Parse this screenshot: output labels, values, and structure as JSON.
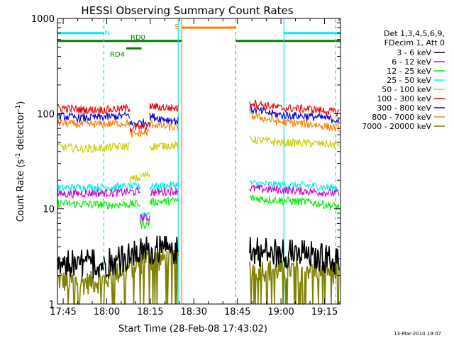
{
  "chart_data": {
    "type": "line",
    "title": "HESSI Observing Summary Count Rates",
    "xlabel": "Start Time (28-Feb-08 17:43:02)",
    "ylabel_prefix": "Count Rate (s",
    "ylabel_sup1": "-1",
    "ylabel_mid": " detector",
    "ylabel_suffix": ")",
    "x_start": "17:43:02",
    "x_end": "19:20:30",
    "xlim_min": [
      1063.03,
      1160.5
    ],
    "y_scale": "log",
    "ylim": [
      1,
      1000
    ],
    "x_ticks": [
      {
        "label": "17:45",
        "min": 1065
      },
      {
        "label": "18:00",
        "min": 1080
      },
      {
        "label": "18:15",
        "min": 1095
      },
      {
        "label": "18:30",
        "min": 1110
      },
      {
        "label": "18:45",
        "min": 1125
      },
      {
        "label": "19:00",
        "min": 1140
      },
      {
        "label": "19:15",
        "min": 1155
      }
    ],
    "y_ticks": [
      {
        "label": "1",
        "v": 1
      },
      {
        "label": "10",
        "v": 10
      },
      {
        "label": "100",
        "v": 100
      },
      {
        "label": "1000",
        "v": 1000
      }
    ],
    "legend_header": [
      "Det 1,3,4,5,6,9,",
      "FDecim 1, Att 0"
    ],
    "legend_placement": "right",
    "series": [
      {
        "name": "3 - 6 keV",
        "color": "#000000",
        "segments": [
          {
            "start": 1063.03,
            "end": 1079.0,
            "values": [
              2.5,
              2.6
            ]
          },
          {
            "start": 1079.0,
            "end": 1092.0,
            "values": [
              2.6,
              2.8,
              3.4
            ]
          },
          {
            "start": 1092.0,
            "end": 1104.6,
            "values": [
              3.5,
              3.6,
              3.5
            ]
          },
          {
            "start": 1129.2,
            "end": 1160.0,
            "values": [
              3.5,
              3.3,
              3.2,
              2.6
            ]
          }
        ]
      },
      {
        "name": "6 - 12 keV",
        "color": "#cc00cc",
        "segments": [
          {
            "start": 1063.03,
            "end": 1091.5,
            "values": [
              14.3,
              14.6,
              14.8,
              15.2
            ]
          },
          {
            "start": 1091.5,
            "end": 1094.8,
            "values": [
              8.0,
              8.1
            ]
          },
          {
            "start": 1094.8,
            "end": 1104.6,
            "values": [
              14.8,
              15.2,
              15.5
            ]
          },
          {
            "start": 1129.2,
            "end": 1160.0,
            "values": [
              16.5,
              15.8,
              15.3,
              14.5
            ]
          }
        ]
      },
      {
        "name": "12 - 25 keV",
        "color": "#00ee00",
        "segments": [
          {
            "start": 1063.03,
            "end": 1091.5,
            "values": [
              11.5,
              11.2,
              11.0,
              11.3
            ]
          },
          {
            "start": 1091.5,
            "end": 1094.8,
            "values": [
              6.8,
              7.0
            ]
          },
          {
            "start": 1094.8,
            "end": 1104.6,
            "values": [
              11.8,
              12.0,
              12.2
            ]
          },
          {
            "start": 1129.2,
            "end": 1160.0,
            "values": [
              13.0,
              12.3,
              11.8,
              10.5
            ]
          }
        ]
      },
      {
        "name": "25 - 50 keV",
        "color": "#00eeee",
        "segments": [
          {
            "start": 1063.03,
            "end": 1091.5,
            "values": [
              16.5,
              16.8,
              17.0,
              17.2
            ]
          },
          {
            "start": 1091.5,
            "end": 1094.8,
            "values": [
              8.8,
              9.0
            ]
          },
          {
            "start": 1094.8,
            "end": 1104.6,
            "values": [
              17.0,
              17.5,
              18.0
            ]
          },
          {
            "start": 1129.2,
            "end": 1160.0,
            "values": [
              18.5,
              17.8,
              17.5,
              16.5
            ]
          }
        ]
      },
      {
        "name": "50 - 100 keV",
        "color": "#cccc00",
        "segments": [
          {
            "start": 1063.03,
            "end": 1088.0,
            "values": [
              45,
              43,
              44,
              46
            ]
          },
          {
            "start": 1088.0,
            "end": 1091.5,
            "values": [
              20.5,
              21
            ]
          },
          {
            "start": 1091.5,
            "end": 1094.8,
            "values": [
              22,
              23
            ]
          },
          {
            "start": 1094.8,
            "end": 1104.6,
            "values": [
              45,
              46,
              47
            ]
          },
          {
            "start": 1129.2,
            "end": 1160.0,
            "values": [
              54,
              50,
              49,
              47
            ]
          }
        ]
      },
      {
        "name": "100 - 300 keV",
        "color": "#ee0000",
        "segments": [
          {
            "start": 1063.03,
            "end": 1088.0,
            "values": [
              116,
              110,
              110,
              114
            ]
          },
          {
            "start": 1088.0,
            "end": 1094.8,
            "values": [
              70,
              72,
              74
            ]
          },
          {
            "start": 1094.8,
            "end": 1104.6,
            "values": [
              120,
              116,
              114
            ]
          },
          {
            "start": 1129.2,
            "end": 1160.0,
            "values": [
              132,
              115,
              112,
              103
            ]
          }
        ]
      },
      {
        "name": "300 - 800 keV",
        "color": "#0000cc",
        "segments": [
          {
            "start": 1063.03,
            "end": 1088.0,
            "values": [
              95,
              90,
              92,
              96
            ]
          },
          {
            "start": 1088.0,
            "end": 1094.8,
            "values": [
              78,
              80,
              82
            ]
          },
          {
            "start": 1094.8,
            "end": 1104.6,
            "values": [
              94,
              88,
              84
            ]
          },
          {
            "start": 1129.2,
            "end": 1160.0,
            "values": [
              112,
              97,
              94,
              86
            ]
          }
        ]
      },
      {
        "name": "800 - 7000 keV",
        "color": "#ff7f00",
        "segments": [
          {
            "start": 1063.03,
            "end": 1088.0,
            "values": [
              80,
              77,
              78,
              80
            ]
          },
          {
            "start": 1088.0,
            "end": 1094.8,
            "values": [
              60,
              62,
              64
            ]
          },
          {
            "start": 1094.8,
            "end": 1104.6,
            "values": [
              78,
              74,
              71
            ]
          },
          {
            "start": 1129.2,
            "end": 1160.0,
            "values": [
              96,
              82,
              78,
              70
            ]
          }
        ]
      },
      {
        "name": "7000 - 20000 keV",
        "color": "#808000",
        "segments": [
          {
            "start": 1063.03,
            "end": 1079.0,
            "values": [
              1.8,
              1.7,
              1.8
            ]
          },
          {
            "start": 1079.0,
            "end": 1092.0,
            "values": [
              1.8,
              2.3,
              2.8
            ]
          },
          {
            "start": 1092.0,
            "end": 1104.6,
            "values": [
              3.0,
              3.0,
              3.0
            ]
          },
          {
            "start": 1129.2,
            "end": 1160.0,
            "values": [
              2.4,
              2.3,
              2.4,
              2.2
            ]
          }
        ]
      }
    ],
    "flag_bars": [
      {
        "label": "N",
        "color": "#00eeee",
        "y": 700,
        "intervals": [
          [
            1063.03,
            1079.0
          ],
          [
            1141.0,
            1160.5
          ]
        ]
      },
      {
        "label": "RD0",
        "color": "#008000",
        "y": 580,
        "intervals": [
          [
            1063.03,
            1106.0
          ],
          [
            1124.4,
            1160.5
          ]
        ]
      },
      {
        "label": "RD4",
        "color": "#008000",
        "y": 485,
        "intervals": [
          [
            1086.7,
            1092.0
          ]
        ]
      },
      {
        "label": "S",
        "color": "#ff7f00",
        "y": 800,
        "intervals": [
          [
            1105.8,
            1124.4
          ]
        ]
      }
    ],
    "vertical_lines": [
      {
        "t": 1079.0,
        "color": "#00eeee",
        "dashed": true
      },
      {
        "t": 1141.0,
        "color": "#00eeee",
        "dashed": false
      },
      {
        "t": 1158.8,
        "color": "#00eeee",
        "dashed": true
      },
      {
        "t": 1104.6,
        "color": "#00eeee",
        "dashed": false
      },
      {
        "t": 1105.8,
        "color": "#ff7f00",
        "dashed": false
      },
      {
        "t": 1124.4,
        "color": "#ff7f00",
        "dashed": true
      },
      {
        "t": 1063.03,
        "color": "#00eeee",
        "dashed": false
      }
    ],
    "grid": false
  },
  "footer_timestamp": "13-Mar-2010 19:07"
}
